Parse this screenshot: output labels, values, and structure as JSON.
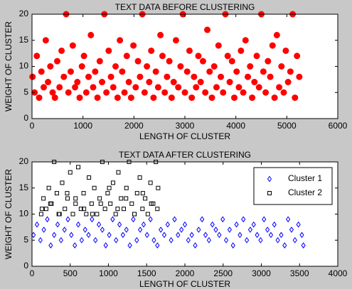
{
  "chart_data": [
    {
      "type": "scatter",
      "title": "TEXT DATA BEFORE CLUSTERING",
      "x_label": "LENGTH OF CLUSTER",
      "y_label": "WEIGHT OF CLUSTER",
      "xlim": [
        0,
        6000
      ],
      "xticks": [
        0,
        1000,
        2000,
        3000,
        4000,
        5000,
        6000
      ],
      "ylim": [
        0,
        20
      ],
      "yticks": [
        0,
        5,
        10,
        15,
        20
      ],
      "series": [
        {
          "color": "#ff0000",
          "marker": "circle",
          "x": [
            10,
            50,
            95,
            140,
            185,
            230,
            270,
            315,
            360,
            405,
            450,
            495,
            540,
            580,
            625,
            670,
            715,
            760,
            800,
            845,
            890,
            935,
            980,
            1020,
            1065,
            1110,
            1155,
            1200,
            1240,
            1285,
            1330,
            1375,
            1420,
            1460,
            1505,
            1550,
            1595,
            1640,
            1680,
            1725,
            1770,
            1815,
            1860,
            1900,
            1945,
            1990,
            2035,
            2080,
            2120,
            2165,
            2210,
            2255,
            2300,
            2340,
            2385,
            2430,
            2475,
            2520,
            2560,
            2605,
            2650,
            2695,
            2740,
            2780,
            2825,
            2870,
            2915,
            2960,
            3000,
            3045,
            3090,
            3135,
            3180,
            3220,
            3265,
            3310,
            3355,
            3400,
            3440,
            3485,
            3530,
            3575,
            3620,
            3660,
            3705,
            3750,
            3795,
            3840,
            3880,
            3925,
            3970,
            4015,
            4060,
            4100,
            4145,
            4190,
            4235,
            4280,
            4320,
            4365,
            4410,
            4455,
            4500,
            4540,
            4585,
            4630,
            4675,
            4720,
            4760,
            4805,
            4850,
            4895,
            4940,
            4980,
            5025,
            5070,
            5115,
            5160,
            5200,
            5245
          ],
          "values": [
            8,
            5,
            12,
            4,
            9,
            6,
            15,
            7,
            10,
            5,
            4,
            11,
            6,
            13,
            8,
            20,
            5,
            9,
            14,
            6,
            7,
            4,
            10,
            12,
            5,
            8,
            16,
            6,
            9,
            4,
            11,
            7,
            20,
            5,
            13,
            8,
            6,
            10,
            4,
            15,
            9,
            5,
            12,
            7,
            4,
            14,
            6,
            11,
            8,
            20,
            5,
            10,
            7,
            13,
            4,
            9,
            6,
            16,
            12,
            5,
            8,
            11,
            4,
            7,
            15,
            6,
            10,
            20,
            5,
            9,
            13,
            4,
            8,
            6,
            12,
            7,
            11,
            5,
            17,
            9,
            4,
            10,
            6,
            14,
            8,
            5,
            20,
            12,
            7,
            11,
            4,
            9,
            6,
            13,
            5,
            15,
            8,
            10,
            4,
            7,
            12,
            6,
            20,
            9,
            5,
            11,
            8,
            14,
            4,
            16,
            6,
            10,
            5,
            13,
            7,
            9,
            20,
            4,
            12,
            8
          ]
        }
      ]
    },
    {
      "type": "scatter",
      "title": "TEXT DATA AFTER CLUSTERING",
      "x_label": "LENGTH OF CLUSTER",
      "y_label": "WEIGHT OF CLUSTER",
      "xlim": [
        0,
        4000
      ],
      "xticks": [
        0,
        500,
        1000,
        1500,
        2000,
        2500,
        3000,
        3500,
        4000
      ],
      "ylim": [
        0,
        20
      ],
      "yticks": [
        0,
        5,
        10,
        15,
        20
      ],
      "legend": "upper right",
      "series": [
        {
          "name": "Cluster 1",
          "color": "#0000ff",
          "marker": "diamond",
          "x": [
            20,
            65,
            110,
            155,
            200,
            245,
            290,
            335,
            380,
            425,
            470,
            515,
            560,
            605,
            650,
            695,
            740,
            785,
            830,
            875,
            920,
            965,
            1010,
            1055,
            1100,
            1145,
            1190,
            1235,
            1280,
            1325,
            1370,
            1415,
            1460,
            1505,
            1550,
            1595,
            1640,
            1685,
            1730,
            1775,
            1820,
            1865,
            1910,
            1955,
            2000,
            2045,
            2090,
            2135,
            2180,
            2225,
            2270,
            2315,
            2360,
            2405,
            2450,
            2495,
            2540,
            2585,
            2630,
            2675,
            2720,
            2765,
            2810,
            2855,
            2900,
            2945,
            2990,
            3035,
            3080,
            3125,
            3170,
            3215,
            3260,
            3305,
            3350,
            3395,
            3440,
            3485,
            3530,
            3550
          ],
          "values": [
            6,
            8,
            5,
            7,
            9,
            4,
            6,
            8,
            5,
            7,
            9,
            6,
            4,
            8,
            5,
            7,
            6,
            9,
            5,
            8,
            7,
            4,
            6,
            9,
            5,
            8,
            6,
            7,
            4,
            9,
            5,
            7,
            8,
            6,
            9,
            5,
            4,
            7,
            6,
            8,
            5,
            9,
            6,
            7,
            8,
            5,
            6,
            4,
            7,
            9,
            6,
            5,
            8,
            7,
            6,
            9,
            5,
            7,
            4,
            8,
            6,
            9,
            5,
            7,
            8,
            6,
            5,
            9,
            7,
            6,
            8,
            5,
            6,
            4,
            9,
            7,
            5,
            8,
            6,
            4
          ]
        },
        {
          "name": "Cluster 2",
          "color": "#000000",
          "marker": "square",
          "x": [
            120,
            150,
            185,
            220,
            255,
            290,
            325,
            360,
            395,
            430,
            465,
            500,
            535,
            570,
            605,
            640,
            675,
            710,
            745,
            780,
            815,
            850,
            885,
            920,
            955,
            990,
            1025,
            1060,
            1095,
            1130,
            1165,
            1200,
            1235,
            1270,
            1305,
            1340,
            1375,
            1410,
            1445,
            1480,
            1515,
            1550,
            1585,
            1620,
            1650,
            130,
            240,
            350,
            460,
            570,
            680,
            790,
            900,
            1010,
            1120,
            1230,
            1340,
            1450,
            1560,
            1640
          ],
          "values": [
            10,
            13,
            11,
            15,
            12,
            20,
            14,
            10,
            16,
            11,
            13,
            18,
            10,
            12,
            19,
            11,
            14,
            10,
            17,
            12,
            15,
            10,
            13,
            20,
            11,
            14,
            12,
            16,
            10,
            18,
            13,
            11,
            15,
            20,
            12,
            10,
            14,
            17,
            11,
            13,
            10,
            16,
            12,
            20,
            15,
            11,
            12,
            10,
            14,
            13,
            11,
            10,
            12,
            15,
            11,
            13,
            10,
            14,
            12,
            11
          ]
        }
      ]
    }
  ]
}
